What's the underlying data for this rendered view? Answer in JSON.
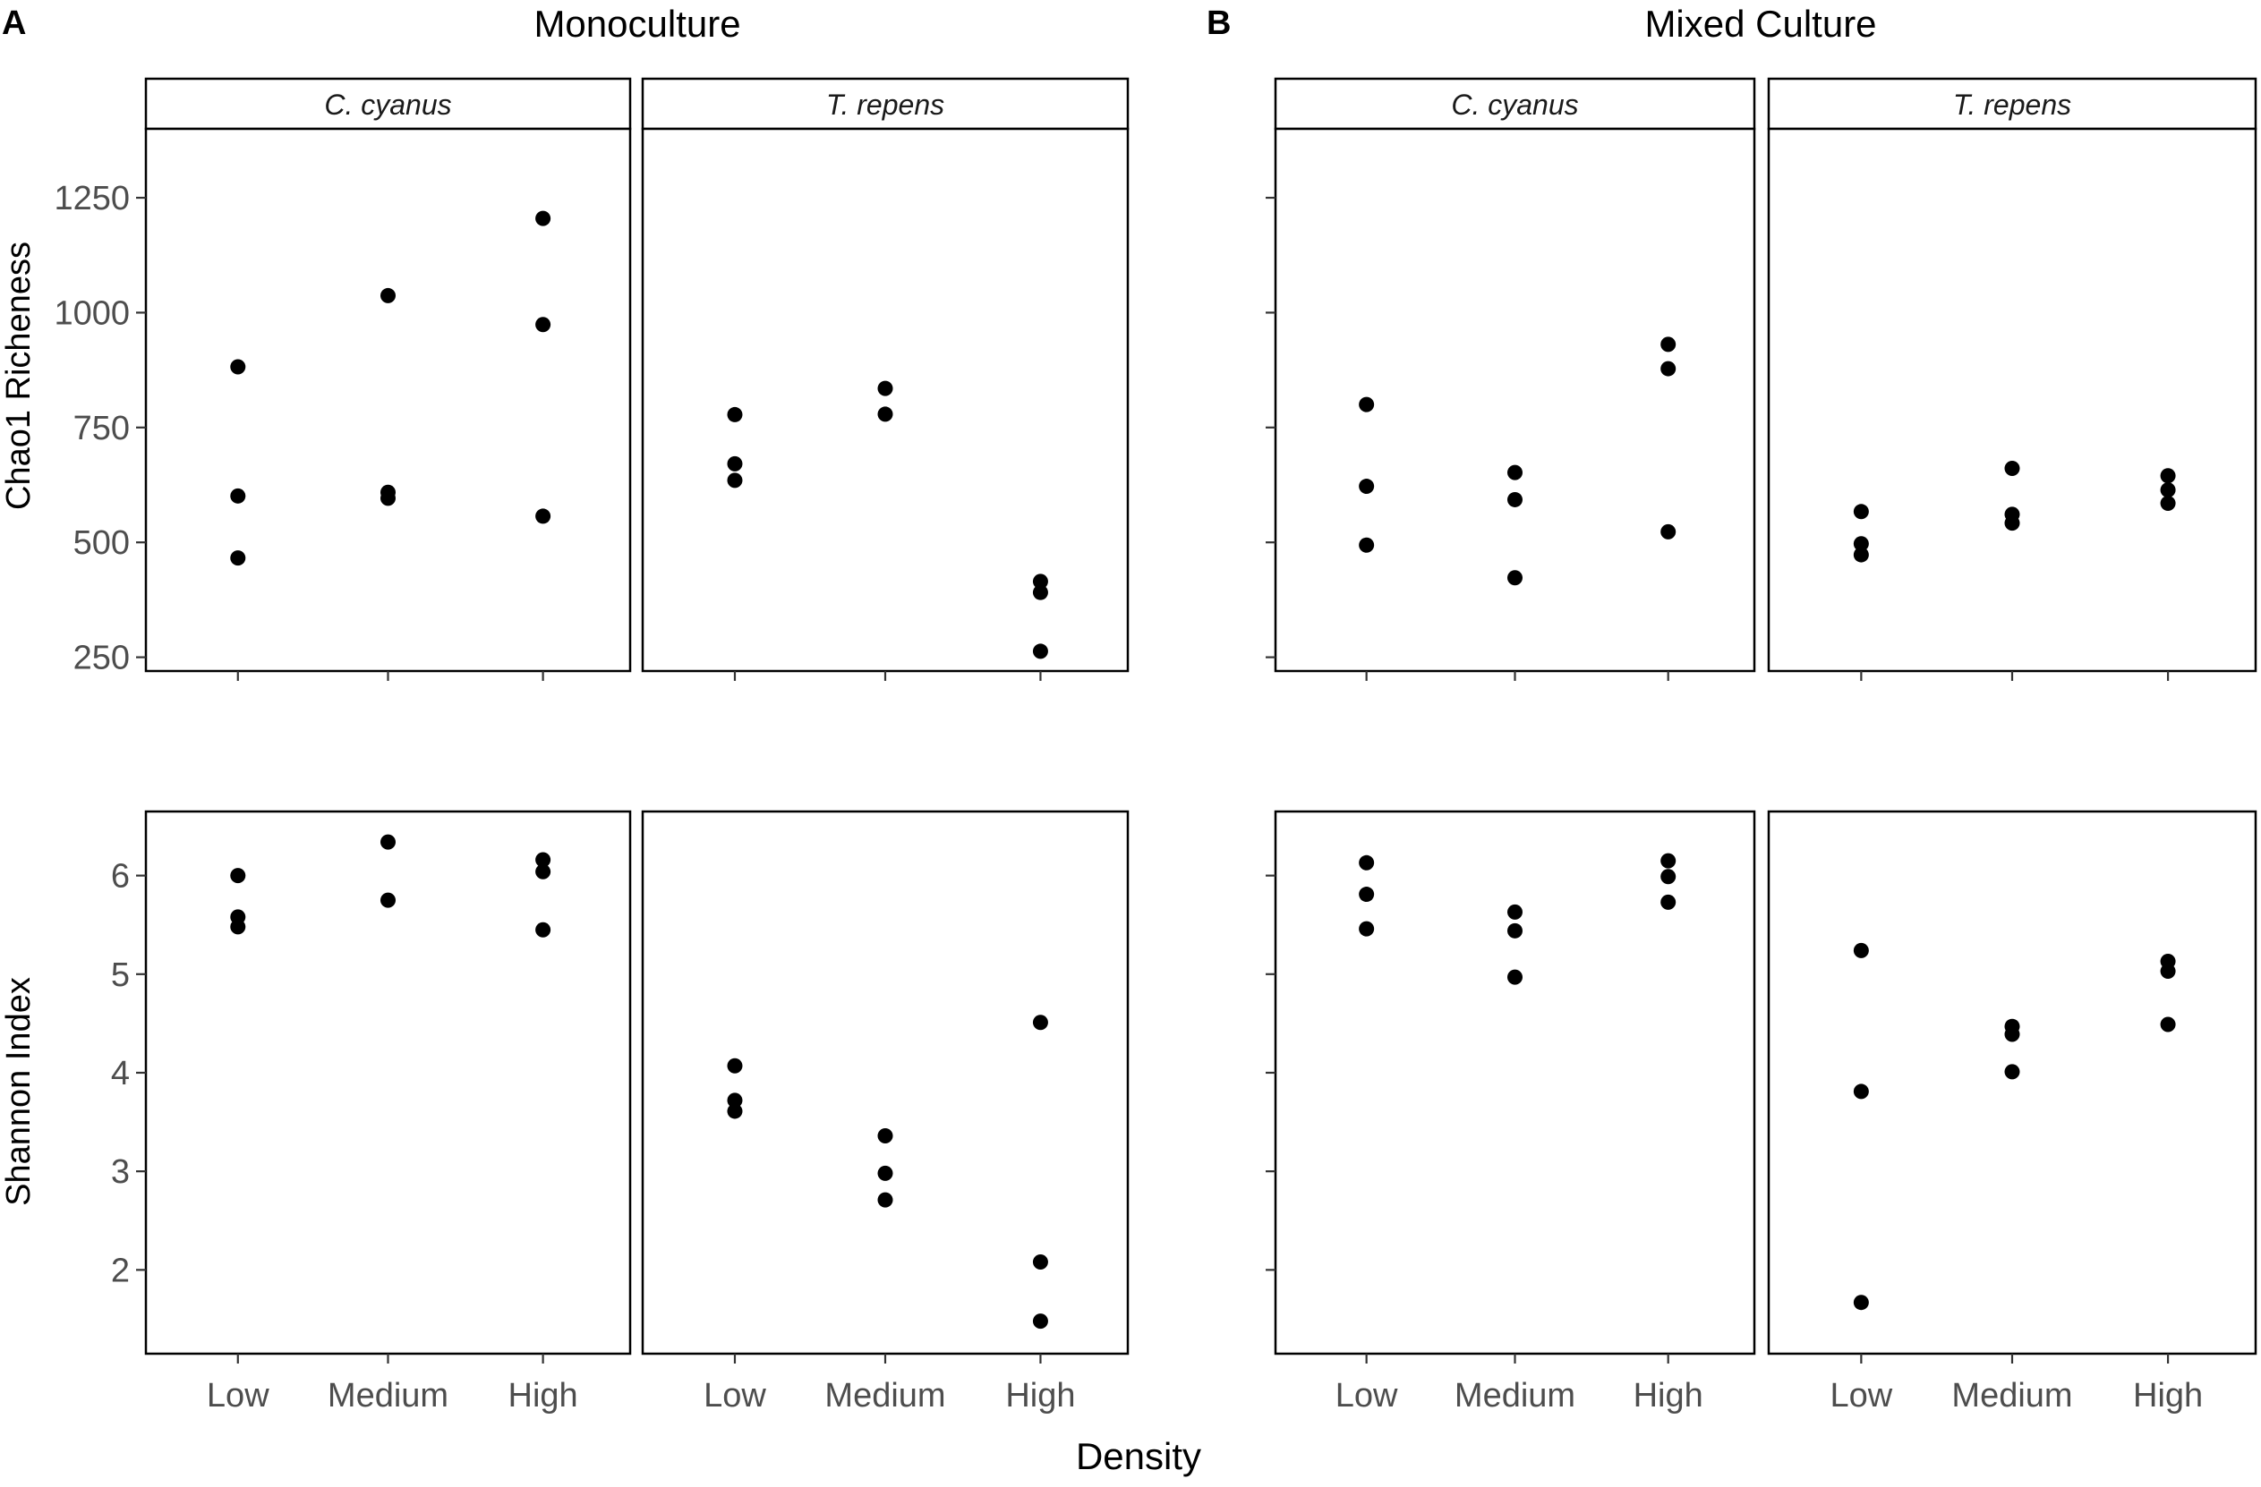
{
  "figure": {
    "xlabel": "Density",
    "categories": [
      "Low",
      "Medium",
      "High"
    ],
    "parts": [
      {
        "letter": "A",
        "title": "Monoculture"
      },
      {
        "letter": "B",
        "title": "Mixed Culture"
      }
    ],
    "species": [
      "C. cyanus",
      "T. repens"
    ],
    "rows": [
      {
        "ylabel": "Chao1 Richeness",
        "ylim": [
          220,
          1400
        ],
        "ticks": [
          250,
          500,
          750,
          1000,
          1250
        ]
      },
      {
        "ylabel": "Shannon Index",
        "ylim": [
          1.15,
          6.65
        ],
        "ticks": [
          2,
          3,
          4,
          5,
          6
        ]
      }
    ]
  },
  "chart_data": [
    {
      "type": "scatter",
      "part": "A",
      "culture": "Monoculture",
      "species": "C. cyanus",
      "metric": "Chao1 Richeness",
      "xlabel": "Density",
      "ylabel": "Chao1 Richeness",
      "categories": [
        "Low",
        "Medium",
        "High"
      ],
      "values": [
        [
          882,
          601,
          466
        ],
        [
          1037,
          609,
          596
        ],
        [
          1205,
          974,
          557
        ]
      ]
    },
    {
      "type": "scatter",
      "part": "A",
      "culture": "Monoculture",
      "species": "T. repens",
      "metric": "Chao1 Richeness",
      "xlabel": "Density",
      "ylabel": "Chao1 Richeness",
      "categories": [
        "Low",
        "Medium",
        "High"
      ],
      "values": [
        [
          778,
          671,
          635
        ],
        [
          835,
          779
        ],
        [
          415,
          391,
          263
        ]
      ]
    },
    {
      "type": "scatter",
      "part": "B",
      "culture": "Mixed Culture",
      "species": "C. cyanus",
      "metric": "Chao1 Richeness",
      "xlabel": "Density",
      "ylabel": "Chao1 Richeness",
      "categories": [
        "Low",
        "Medium",
        "High"
      ],
      "values": [
        [
          800,
          622,
          494
        ],
        [
          652,
          593,
          423
        ],
        [
          931,
          878,
          523
        ]
      ]
    },
    {
      "type": "scatter",
      "part": "B",
      "culture": "Mixed Culture",
      "species": "T. repens",
      "metric": "Chao1 Richeness",
      "xlabel": "Density",
      "ylabel": "Chao1 Richeness",
      "categories": [
        "Low",
        "Medium",
        "High"
      ],
      "values": [
        [
          567,
          497,
          473
        ],
        [
          661,
          561,
          542
        ],
        [
          645,
          614,
          585
        ]
      ]
    },
    {
      "type": "scatter",
      "part": "A",
      "culture": "Monoculture",
      "species": "C. cyanus",
      "metric": "Shannon Index",
      "xlabel": "Density",
      "ylabel": "Shannon Index",
      "categories": [
        "Low",
        "Medium",
        "High"
      ],
      "values": [
        [
          6.0,
          5.58,
          5.48
        ],
        [
          6.34,
          5.75
        ],
        [
          6.16,
          6.04,
          5.45
        ]
      ]
    },
    {
      "type": "scatter",
      "part": "A",
      "culture": "Monoculture",
      "species": "T. repens",
      "metric": "Shannon Index",
      "xlabel": "Density",
      "ylabel": "Shannon Index",
      "categories": [
        "Low",
        "Medium",
        "High"
      ],
      "values": [
        [
          4.07,
          3.72,
          3.61
        ],
        [
          3.36,
          2.98,
          2.71
        ],
        [
          4.51,
          2.08,
          1.48
        ]
      ]
    },
    {
      "type": "scatter",
      "part": "B",
      "culture": "Mixed Culture",
      "species": "C. cyanus",
      "metric": "Shannon Index",
      "xlabel": "Density",
      "ylabel": "Shannon Index",
      "categories": [
        "Low",
        "Medium",
        "High"
      ],
      "values": [
        [
          6.13,
          5.81,
          5.46
        ],
        [
          5.63,
          5.44,
          4.97
        ],
        [
          6.15,
          5.99,
          5.73
        ]
      ]
    },
    {
      "type": "scatter",
      "part": "B",
      "culture": "Mixed Culture",
      "species": "T. repens",
      "metric": "Shannon Index",
      "xlabel": "Density",
      "ylabel": "Shannon Index",
      "categories": [
        "Low",
        "Medium",
        "High"
      ],
      "values": [
        [
          5.24,
          3.81,
          1.67
        ],
        [
          4.47,
          4.39,
          4.01
        ],
        [
          5.13,
          5.03,
          4.49
        ]
      ]
    }
  ]
}
